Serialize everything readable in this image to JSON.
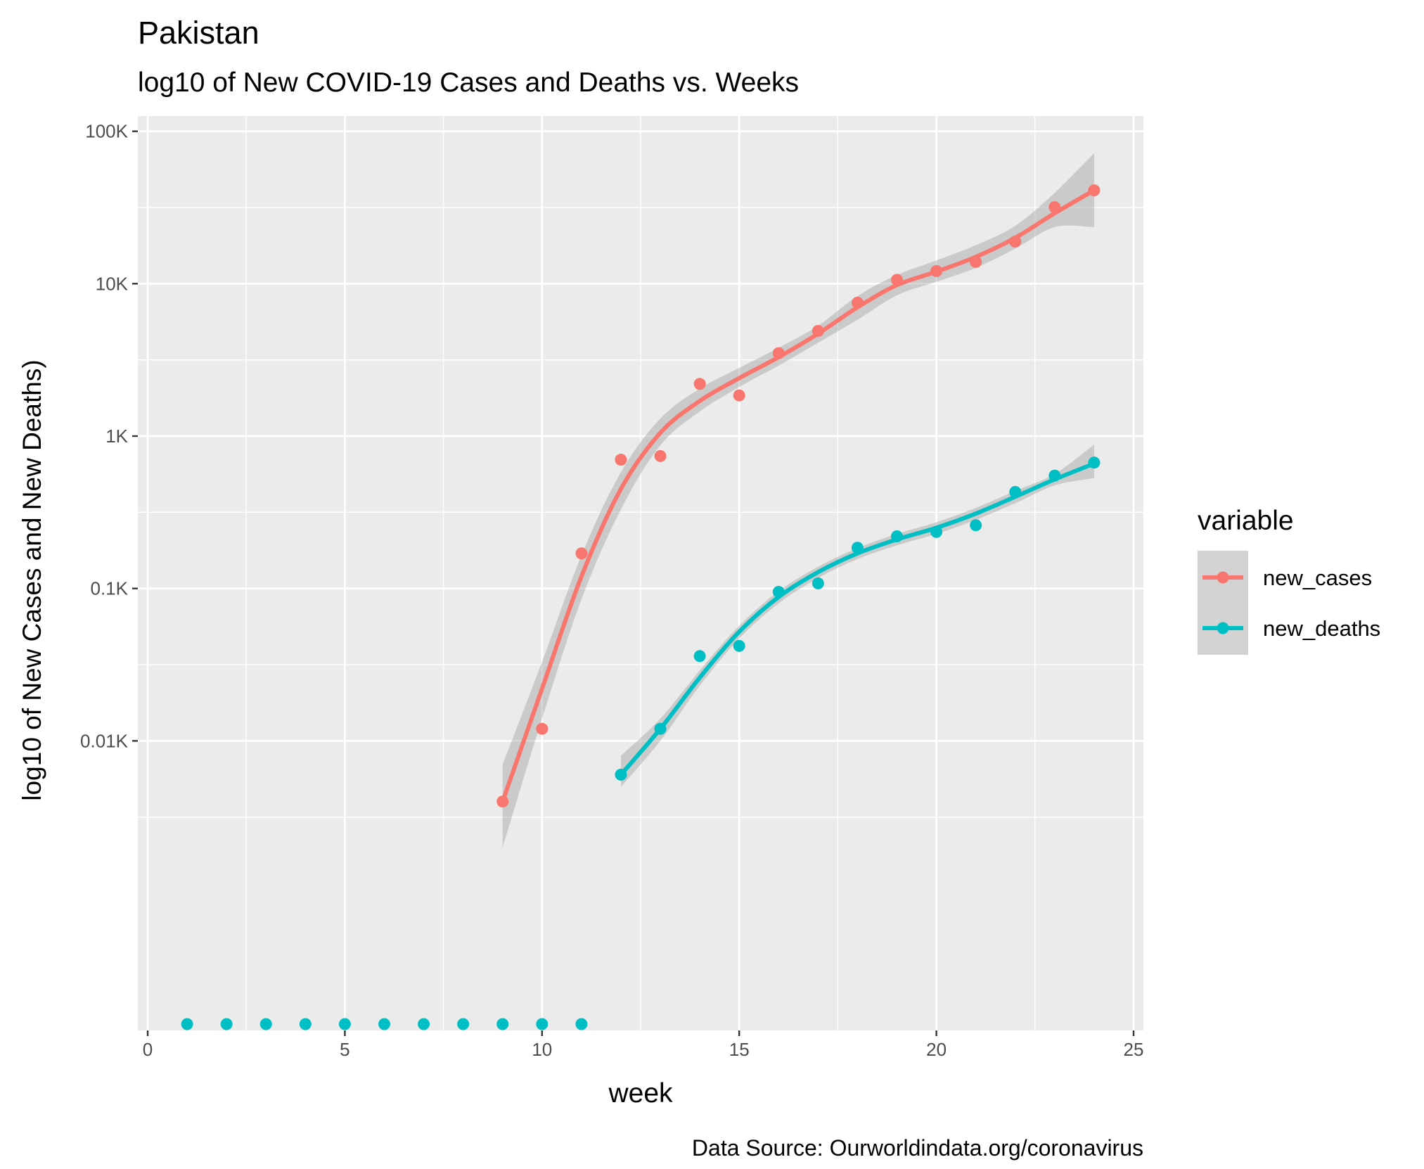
{
  "chart_data": {
    "type": "scatter",
    "title": "Pakistan",
    "subtitle": "log10 of New COVID-19 Cases and Deaths vs. Weeks",
    "xlabel": "week",
    "ylabel": "log10 of New Cases and New Deaths)",
    "caption": "Data Source: Ourworldindata.org/coronavirus",
    "xlim": [
      -0.25,
      25.25
    ],
    "ylim_log10": [
      -0.9,
      5.1
    ],
    "y_scale": "log10",
    "grid": true,
    "x_ticks": [
      0,
      5,
      10,
      15,
      20,
      25
    ],
    "x_tick_labels": [
      "0",
      "5",
      "10",
      "15",
      "20",
      "25"
    ],
    "y_ticks": [
      10,
      100,
      1000,
      10000,
      100000
    ],
    "y_tick_labels": [
      "0.01K",
      "0.1K",
      "1K",
      "10K",
      "100K"
    ],
    "legend": {
      "title": "variable",
      "position": "right",
      "smoothing_band": true
    },
    "series": [
      {
        "name": "new_cases",
        "color": "#F8766D",
        "x": [
          9,
          10,
          11,
          12,
          13,
          14,
          15,
          16,
          17,
          18,
          19,
          20,
          21,
          22,
          23,
          24
        ],
        "y": [
          4,
          12,
          170,
          700,
          740,
          2200,
          1850,
          3500,
          4900,
          7500,
          10600,
          12100,
          13900,
          18900,
          31800,
          41000
        ],
        "smooth_x": [
          9,
          10,
          11,
          12,
          13,
          14,
          15,
          16,
          17,
          18,
          19,
          20,
          21,
          22,
          23,
          24
        ],
        "smooth_y": [
          4,
          22,
          120,
          450,
          1050,
          1700,
          2400,
          3300,
          4700,
          7000,
          9800,
          12000,
          15000,
          20000,
          29000,
          41000
        ],
        "band_lower": [
          2,
          14,
          85,
          330,
          870,
          1450,
          2100,
          2900,
          4100,
          5800,
          8400,
          10300,
          12700,
          17000,
          23500,
          23500
        ],
        "band_upper": [
          7,
          33,
          165,
          580,
          1300,
          2050,
          2800,
          3800,
          5300,
          8300,
          11400,
          14200,
          17900,
          24000,
          39500,
          72000
        ]
      },
      {
        "name": "new_deaths",
        "color": "#00BFC4",
        "x": [
          12,
          13,
          14,
          15,
          16,
          17,
          18,
          19,
          20,
          21,
          22,
          23,
          24
        ],
        "y": [
          6,
          12,
          36,
          42,
          95,
          108,
          185,
          220,
          235,
          260,
          430,
          550,
          670
        ],
        "smooth_x": [
          12,
          13,
          14,
          15,
          16,
          17,
          18,
          19,
          20,
          21,
          22,
          23,
          24
        ],
        "smooth_y": [
          6,
          12,
          26,
          52,
          88,
          128,
          170,
          210,
          250,
          310,
          400,
          520,
          660
        ],
        "band_lower": [
          5,
          10,
          23,
          47,
          80,
          117,
          156,
          192,
          228,
          282,
          363,
          475,
          530
        ],
        "band_upper": [
          8,
          14,
          29,
          57,
          96,
          139,
          184,
          228,
          272,
          338,
          437,
          565,
          880
        ]
      }
    ],
    "zero_values": {
      "series": "new_deaths",
      "color": "#00BFC4",
      "x": [
        1,
        2,
        3,
        4,
        5,
        6,
        7,
        8,
        9,
        10,
        11
      ],
      "y": [
        0,
        0,
        0,
        0,
        0,
        0,
        0,
        0,
        0,
        0,
        0
      ]
    }
  }
}
